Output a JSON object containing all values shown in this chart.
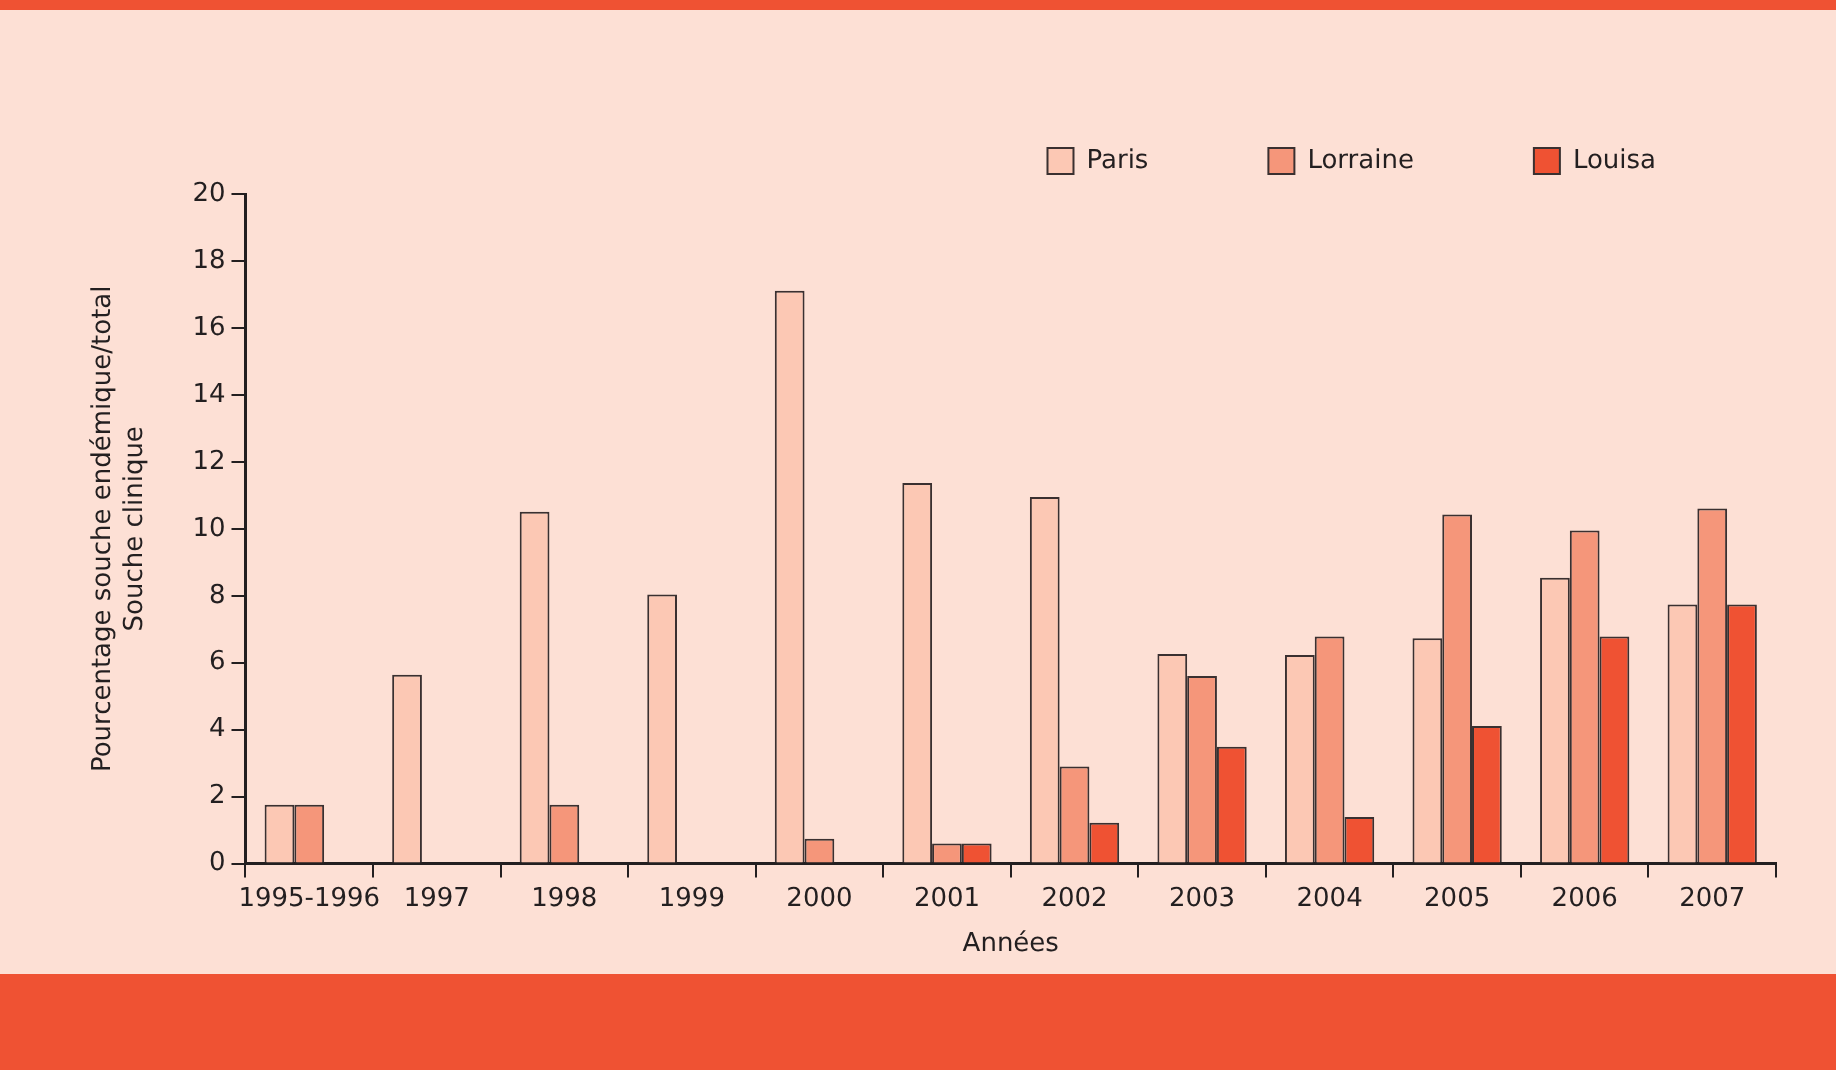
{
  "chart_data": {
    "type": "bar",
    "xlabel": "Années",
    "ylabel": "Pourcentage souche endémique/total\nSouche clinique",
    "categories": [
      "1995-1996",
      "1997",
      "1998",
      "1999",
      "2000",
      "2001",
      "2002",
      "2003",
      "2004",
      "2005",
      "2006",
      "2007"
    ],
    "series": [
      {
        "name": "Paris",
        "color": "#fcc8b4",
        "values": [
          1.76,
          5.64,
          10.51,
          8.04,
          17.11,
          11.37,
          10.95,
          6.26,
          6.23,
          6.73,
          8.54,
          7.74
        ]
      },
      {
        "name": "Lorraine",
        "color": "#f5967a",
        "values": [
          1.76,
          null,
          1.76,
          null,
          0.74,
          0.6,
          2.9,
          5.6,
          6.78,
          10.43,
          9.95,
          10.61
        ]
      },
      {
        "name": "Louisa",
        "color": "#ef5233",
        "values": [
          null,
          null,
          null,
          null,
          null,
          0.6,
          1.22,
          3.49,
          1.39,
          4.11,
          6.78,
          7.74
        ]
      }
    ],
    "ylim": [
      0,
      20
    ],
    "yticks": [
      0,
      2,
      4,
      6,
      8,
      10,
      12,
      14,
      16,
      18,
      20
    ],
    "grid": false,
    "legend": "top right"
  }
}
